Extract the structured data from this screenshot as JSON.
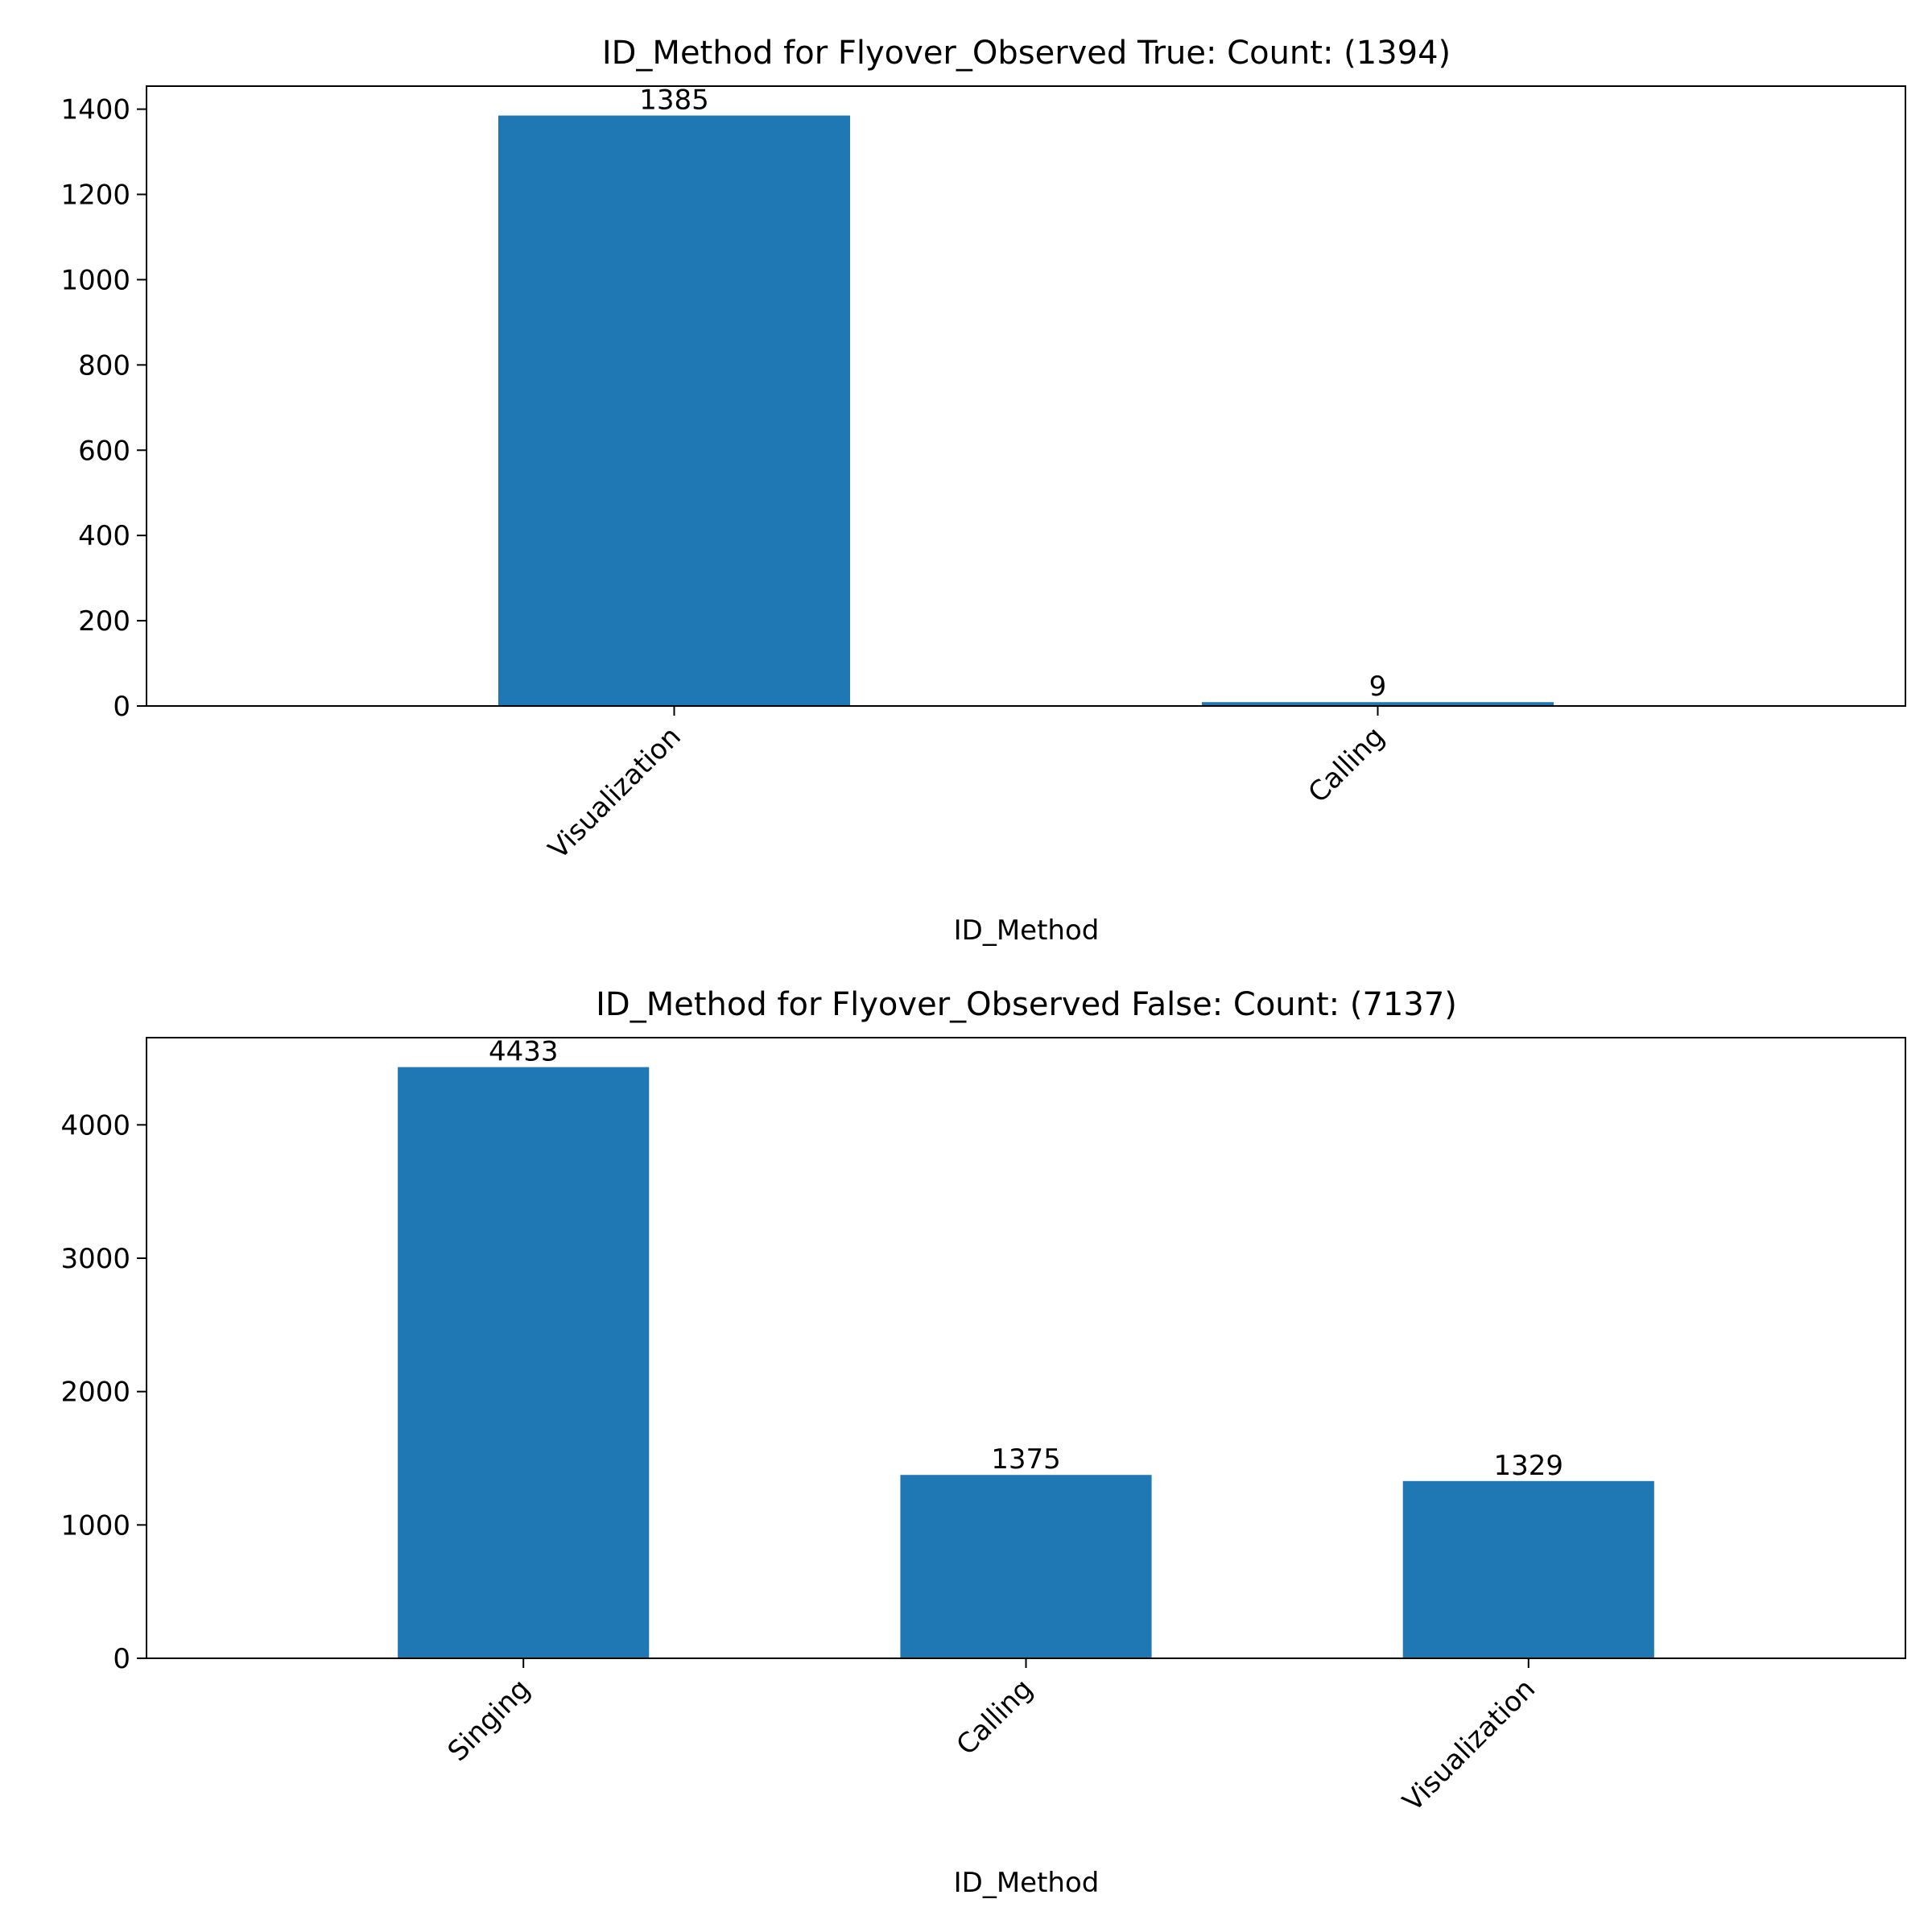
{
  "colors": {
    "bar": "#1f77b4",
    "axes": "#000000",
    "background": "#ffffff"
  },
  "chart_data": [
    {
      "type": "bar",
      "title": "ID_Method for Flyover_Observed True: Count: (1394)",
      "xlabel": "ID_Method",
      "ylabel": "",
      "categories": [
        "Visualization",
        "Calling"
      ],
      "values": [
        1385,
        9
      ],
      "data_labels": [
        "1385",
        "9"
      ],
      "ylim": [
        0,
        1454
      ],
      "yticks": [
        0,
        200,
        400,
        600,
        800,
        1000,
        1200,
        1400
      ],
      "grid": false,
      "legend": "none",
      "xtick_rotation": 45
    },
    {
      "type": "bar",
      "title": "ID_Method for Flyover_Observed False: Count: (7137)",
      "xlabel": "ID_Method",
      "ylabel": "",
      "categories": [
        "Singing",
        "Calling",
        "Visualization"
      ],
      "values": [
        4433,
        1375,
        1329
      ],
      "data_labels": [
        "4433",
        "1375",
        "1329"
      ],
      "ylim": [
        0,
        4654
      ],
      "yticks": [
        0,
        1000,
        2000,
        3000,
        4000
      ],
      "grid": false,
      "legend": "none",
      "xtick_rotation": 45
    }
  ]
}
